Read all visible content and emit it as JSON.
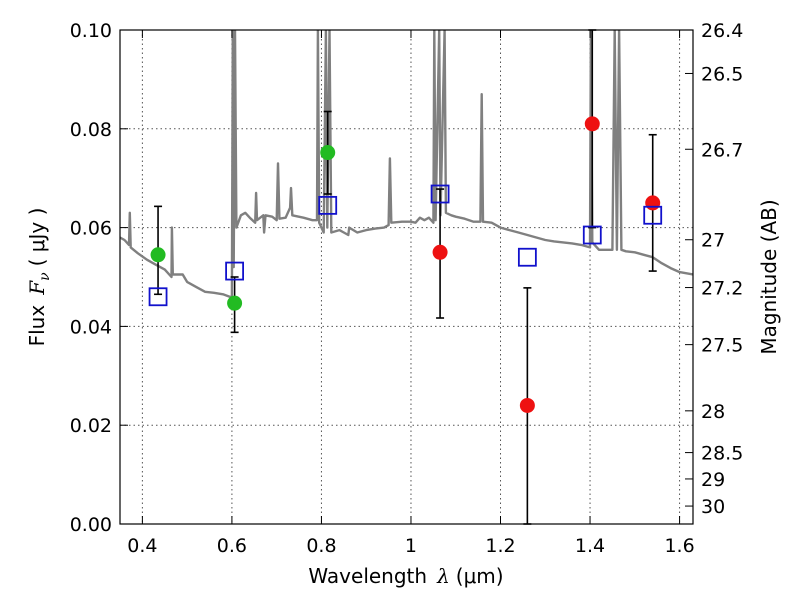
{
  "chart_data": {
    "type": "scatter",
    "title": "",
    "xlabel_prefix": "Wavelength",
    "xlabel_symbol": "λ",
    "xlabel_unit": "(μm)",
    "ylabel_prefix": "Flux",
    "ylabel_symbol": "F",
    "ylabel_subscript": "ν",
    "ylabel_unit": "( μJy )",
    "y2label": "Magnitude (AB)",
    "xlim": [
      0.35,
      1.63
    ],
    "ylim": [
      0.0,
      0.1
    ],
    "grid": true,
    "x_ticks": [
      0.4,
      0.6,
      0.8,
      1.0,
      1.2,
      1.4,
      1.6
    ],
    "x_tick_labels": [
      "0.4",
      "0.6",
      "0.8",
      "1",
      "1.2",
      "1.4",
      "1.6"
    ],
    "y_ticks": [
      0.0,
      0.02,
      0.04,
      0.06,
      0.08,
      0.1
    ],
    "y_tick_labels": [
      "0.00",
      "0.02",
      "0.04",
      "0.06",
      "0.08",
      "0.10"
    ],
    "y2_ticks": [
      {
        "label": "26.4",
        "mag": 26.4
      },
      {
        "label": "26.5",
        "mag": 26.5
      },
      {
        "label": "26.7",
        "mag": 26.7
      },
      {
        "label": "27",
        "mag": 27.0
      },
      {
        "label": "27.2",
        "mag": 27.2
      },
      {
        "label": "27.5",
        "mag": 27.5
      },
      {
        "label": "28",
        "mag": 28.0
      },
      {
        "label": "28.5",
        "mag": 28.5
      },
      {
        "label": "29",
        "mag": 29.0
      },
      {
        "label": "30",
        "mag": 30.0
      }
    ],
    "series": [
      {
        "kind": "observed-detection",
        "color": "#22bb22",
        "points": [
          {
            "x": 0.435,
            "y": 0.0545,
            "yerr_low": 0.0465,
            "yerr_high": 0.0643
          },
          {
            "x": 0.606,
            "y": 0.0447,
            "yerr_low": 0.0388,
            "yerr_high": 0.05
          },
          {
            "x": 0.814,
            "y": 0.0752,
            "yerr_low": 0.0668,
            "yerr_high": 0.0835
          }
        ]
      },
      {
        "kind": "observed-low-significance",
        "color": "#ee1111",
        "points": [
          {
            "x": 1.065,
            "y": 0.055,
            "yerr_low": 0.0417,
            "yerr_high": 0.0678
          },
          {
            "x": 1.26,
            "y": 0.024,
            "yerr_low": 0.0,
            "yerr_high": 0.0478
          },
          {
            "x": 1.405,
            "y": 0.081,
            "yerr_low": 0.06,
            "yerr_high": 0.1
          },
          {
            "x": 1.54,
            "y": 0.065,
            "yerr_low": 0.0512,
            "yerr_high": 0.0788
          }
        ]
      },
      {
        "kind": "model-photometry",
        "color": "#1111cc",
        "points": [
          {
            "x": 0.435,
            "y": 0.046
          },
          {
            "x": 0.606,
            "y": 0.0512
          },
          {
            "x": 0.814,
            "y": 0.0645
          },
          {
            "x": 1.065,
            "y": 0.0668
          },
          {
            "x": 1.26,
            "y": 0.054
          },
          {
            "x": 1.405,
            "y": 0.0585
          },
          {
            "x": 1.54,
            "y": 0.0625
          }
        ]
      },
      {
        "kind": "model-spectrum",
        "color": "#808080",
        "points": [
          {
            "x": 0.35,
            "y": 0.058
          },
          {
            "x": 0.36,
            "y": 0.0575
          },
          {
            "x": 0.37,
            "y": 0.0565
          },
          {
            "x": 0.372,
            "y": 0.063
          },
          {
            "x": 0.374,
            "y": 0.056
          },
          {
            "x": 0.39,
            "y": 0.0548
          },
          {
            "x": 0.41,
            "y": 0.0535
          },
          {
            "x": 0.43,
            "y": 0.0525
          },
          {
            "x": 0.45,
            "y": 0.0515
          },
          {
            "x": 0.465,
            "y": 0.05
          },
          {
            "x": 0.466,
            "y": 0.06
          },
          {
            "x": 0.468,
            "y": 0.0505
          },
          {
            "x": 0.49,
            "y": 0.0505
          },
          {
            "x": 0.5,
            "y": 0.049
          },
          {
            "x": 0.52,
            "y": 0.048
          },
          {
            "x": 0.54,
            "y": 0.047
          },
          {
            "x": 0.56,
            "y": 0.0468
          },
          {
            "x": 0.58,
            "y": 0.0465
          },
          {
            "x": 0.595,
            "y": 0.046
          },
          {
            "x": 0.6,
            "y": 0.046
          },
          {
            "x": 0.602,
            "y": 0.1
          },
          {
            "x": 0.604,
            "y": 0.052
          },
          {
            "x": 0.607,
            "y": 0.1
          },
          {
            "x": 0.61,
            "y": 0.06
          },
          {
            "x": 0.62,
            "y": 0.0625
          },
          {
            "x": 0.63,
            "y": 0.063
          },
          {
            "x": 0.64,
            "y": 0.062
          },
          {
            "x": 0.652,
            "y": 0.061
          },
          {
            "x": 0.654,
            "y": 0.067
          },
          {
            "x": 0.656,
            "y": 0.0615
          },
          {
            "x": 0.67,
            "y": 0.0625
          },
          {
            "x": 0.672,
            "y": 0.059
          },
          {
            "x": 0.675,
            "y": 0.0625
          },
          {
            "x": 0.69,
            "y": 0.0622
          },
          {
            "x": 0.7,
            "y": 0.0615
          },
          {
            "x": 0.703,
            "y": 0.073
          },
          {
            "x": 0.706,
            "y": 0.0618
          },
          {
            "x": 0.72,
            "y": 0.062
          },
          {
            "x": 0.73,
            "y": 0.064
          },
          {
            "x": 0.732,
            "y": 0.068
          },
          {
            "x": 0.735,
            "y": 0.0625
          },
          {
            "x": 0.76,
            "y": 0.062
          },
          {
            "x": 0.78,
            "y": 0.0615
          },
          {
            "x": 0.79,
            "y": 0.0615
          },
          {
            "x": 0.792,
            "y": 0.1
          },
          {
            "x": 0.795,
            "y": 0.061
          },
          {
            "x": 0.805,
            "y": 0.059
          },
          {
            "x": 0.81,
            "y": 0.1
          },
          {
            "x": 0.813,
            "y": 0.06
          },
          {
            "x": 0.818,
            "y": 0.1
          },
          {
            "x": 0.822,
            "y": 0.059
          },
          {
            "x": 0.84,
            "y": 0.0595
          },
          {
            "x": 0.85,
            "y": 0.059
          },
          {
            "x": 0.86,
            "y": 0.0585
          },
          {
            "x": 0.862,
            "y": 0.06
          },
          {
            "x": 0.88,
            "y": 0.059
          },
          {
            "x": 0.9,
            "y": 0.0595
          },
          {
            "x": 0.92,
            "y": 0.0598
          },
          {
            "x": 0.94,
            "y": 0.06
          },
          {
            "x": 0.95,
            "y": 0.0605
          },
          {
            "x": 0.953,
            "y": 0.074
          },
          {
            "x": 0.956,
            "y": 0.061
          },
          {
            "x": 0.98,
            "y": 0.0612
          },
          {
            "x": 1.0,
            "y": 0.0612
          },
          {
            "x": 1.01,
            "y": 0.061
          },
          {
            "x": 1.02,
            "y": 0.062
          },
          {
            "x": 1.03,
            "y": 0.0615
          },
          {
            "x": 1.04,
            "y": 0.062
          },
          {
            "x": 1.05,
            "y": 0.061
          },
          {
            "x": 1.052,
            "y": 0.1
          },
          {
            "x": 1.055,
            "y": 0.0615
          },
          {
            "x": 1.063,
            "y": 0.1
          },
          {
            "x": 1.066,
            "y": 0.0625
          },
          {
            "x": 1.075,
            "y": 0.1
          },
          {
            "x": 1.078,
            "y": 0.063
          },
          {
            "x": 1.09,
            "y": 0.0625
          },
          {
            "x": 1.1,
            "y": 0.0622
          },
          {
            "x": 1.12,
            "y": 0.0618
          },
          {
            "x": 1.14,
            "y": 0.0612
          },
          {
            "x": 1.155,
            "y": 0.0612
          },
          {
            "x": 1.158,
            "y": 0.087
          },
          {
            "x": 1.161,
            "y": 0.0612
          },
          {
            "x": 1.18,
            "y": 0.061
          },
          {
            "x": 1.2,
            "y": 0.06
          },
          {
            "x": 1.22,
            "y": 0.0595
          },
          {
            "x": 1.24,
            "y": 0.059
          },
          {
            "x": 1.26,
            "y": 0.0585
          },
          {
            "x": 1.28,
            "y": 0.058
          },
          {
            "x": 1.3,
            "y": 0.0575
          },
          {
            "x": 1.32,
            "y": 0.0572
          },
          {
            "x": 1.34,
            "y": 0.057
          },
          {
            "x": 1.36,
            "y": 0.0568
          },
          {
            "x": 1.38,
            "y": 0.0565
          },
          {
            "x": 1.4,
            "y": 0.056
          },
          {
            "x": 1.402,
            "y": 0.1
          },
          {
            "x": 1.405,
            "y": 0.057
          },
          {
            "x": 1.42,
            "y": 0.0555
          },
          {
            "x": 1.44,
            "y": 0.0555
          },
          {
            "x": 1.45,
            "y": 0.0555
          },
          {
            "x": 1.455,
            "y": 0.1
          },
          {
            "x": 1.46,
            "y": 0.0555
          },
          {
            "x": 1.465,
            "y": 0.1
          },
          {
            "x": 1.47,
            "y": 0.0555
          },
          {
            "x": 1.48,
            "y": 0.0552
          },
          {
            "x": 1.5,
            "y": 0.055
          },
          {
            "x": 1.52,
            "y": 0.0545
          },
          {
            "x": 1.54,
            "y": 0.054
          },
          {
            "x": 1.56,
            "y": 0.0528
          },
          {
            "x": 1.58,
            "y": 0.0518
          },
          {
            "x": 1.6,
            "y": 0.051
          },
          {
            "x": 1.63,
            "y": 0.0505
          }
        ]
      }
    ]
  }
}
